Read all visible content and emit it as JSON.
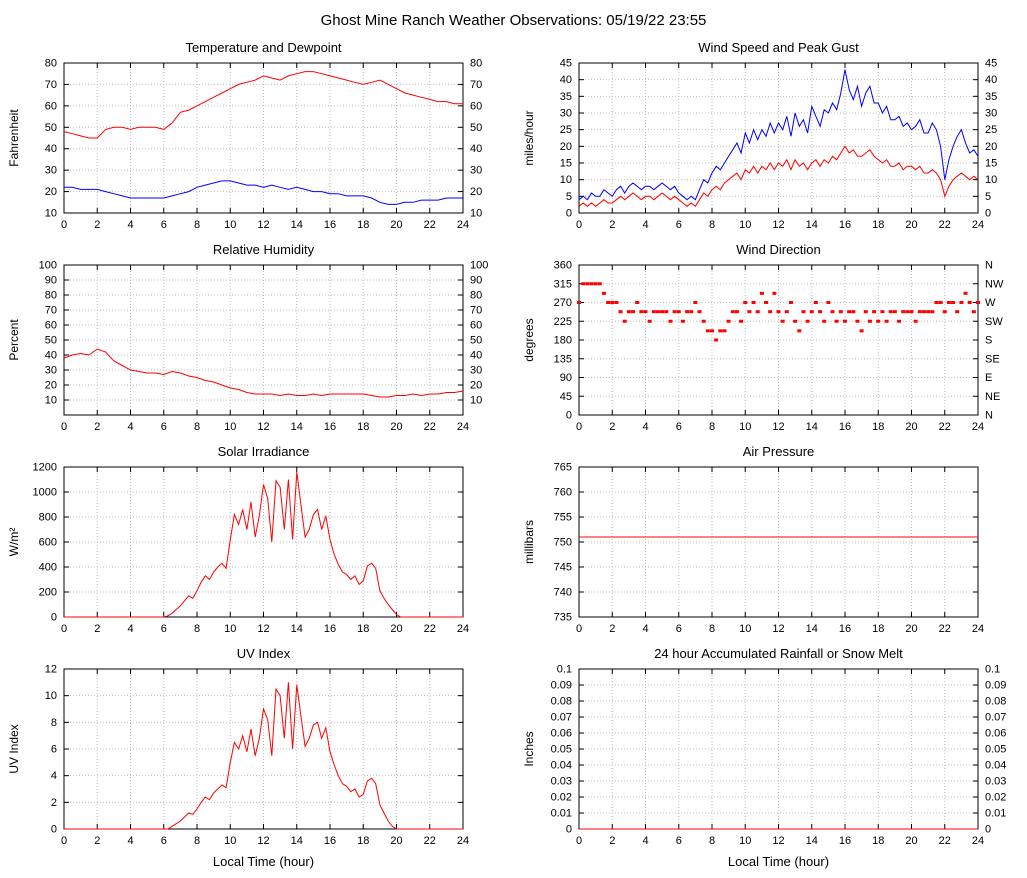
{
  "page_title": "Ghost Mine Ranch Weather Observations: 05/19/22 23:55",
  "colors": {
    "red": "#ff0000",
    "blue": "#0000ff"
  },
  "x_axis": {
    "label": "Local Time (hour)",
    "min": 0,
    "max": 24,
    "ticks": [
      0,
      2,
      4,
      6,
      8,
      10,
      12,
      14,
      16,
      18,
      20,
      22,
      24
    ]
  },
  "chart_data": [
    {
      "id": "temperature-dewpoint",
      "type": "line",
      "title": "Temperature and Dewpoint",
      "ylabel": "Fahrenheit",
      "xlabel": "",
      "ylim": [
        10,
        80
      ],
      "yticks": [
        10,
        20,
        30,
        40,
        50,
        60,
        70,
        80
      ],
      "ytick_labels": [
        "10",
        "20",
        "30",
        "40",
        "50",
        "60",
        "70",
        "80"
      ],
      "right_tick_labels": [
        "10",
        "20",
        "30",
        "40",
        "50",
        "60",
        "70",
        "80"
      ],
      "series": [
        {
          "name": "temperature",
          "color": "red",
          "x_start": 0,
          "x_step": 0.5,
          "values": [
            48,
            47,
            46,
            45,
            45,
            49,
            50,
            50,
            49,
            50,
            50,
            50,
            49,
            52,
            57,
            58,
            60,
            62,
            64,
            66,
            68,
            70,
            71,
            72,
            74,
            73,
            72,
            74,
            75,
            76,
            76,
            75,
            74,
            73,
            72,
            71,
            70,
            71,
            72,
            70,
            68,
            66,
            65,
            64,
            63,
            62,
            62,
            61,
            61
          ]
        },
        {
          "name": "dewpoint",
          "color": "blue",
          "x_start": 0,
          "x_step": 0.5,
          "values": [
            22,
            22,
            21,
            21,
            21,
            20,
            19,
            18,
            17,
            17,
            17,
            17,
            17,
            18,
            19,
            20,
            22,
            23,
            24,
            25,
            25,
            24,
            23,
            23,
            22,
            23,
            22,
            21,
            22,
            21,
            20,
            20,
            19,
            19,
            18,
            18,
            18,
            17,
            15,
            14,
            14,
            15,
            15,
            16,
            16,
            16,
            17,
            17,
            17
          ]
        }
      ]
    },
    {
      "id": "wind-speed-gust",
      "type": "line",
      "title": "Wind Speed and Peak Gust",
      "ylabel": "miles/hour",
      "xlabel": "",
      "ylim": [
        0,
        45
      ],
      "yticks": [
        0,
        5,
        10,
        15,
        20,
        25,
        30,
        35,
        40,
        45
      ],
      "ytick_labels": [
        "0",
        "5",
        "10",
        "15",
        "20",
        "25",
        "30",
        "35",
        "40",
        "45"
      ],
      "right_tick_labels": [
        "0",
        "5",
        "10",
        "15",
        "20",
        "25",
        "30",
        "35",
        "40",
        "45"
      ],
      "series": [
        {
          "name": "peak-gust",
          "color": "blue",
          "x_start": 0,
          "x_step": 0.25,
          "values": [
            4,
            5,
            4,
            6,
            5,
            5,
            7,
            6,
            5,
            7,
            8,
            6,
            8,
            9,
            8,
            7,
            8,
            8,
            7,
            8,
            9,
            8,
            7,
            8,
            6,
            5,
            4,
            5,
            4,
            7,
            10,
            9,
            12,
            14,
            13,
            15,
            17,
            19,
            21,
            18,
            24,
            21,
            25,
            22,
            25,
            23,
            27,
            24,
            27,
            25,
            29,
            23,
            30,
            26,
            28,
            24,
            32,
            29,
            26,
            31,
            30,
            33,
            31,
            36,
            43,
            37,
            34,
            38,
            32,
            36,
            38,
            33,
            33,
            30,
            32,
            28,
            28,
            29,
            26,
            27,
            25,
            26,
            28,
            24,
            24,
            27,
            25,
            20,
            10,
            16,
            20,
            23,
            25,
            21,
            18,
            19,
            17
          ]
        },
        {
          "name": "wind-speed",
          "color": "red",
          "x_start": 0,
          "x_step": 0.25,
          "values": [
            2,
            3,
            2,
            3,
            2,
            3,
            4,
            3,
            3,
            4,
            5,
            4,
            5,
            6,
            5,
            4,
            5,
            5,
            4,
            5,
            6,
            5,
            4,
            5,
            4,
            3,
            2,
            3,
            2,
            4,
            6,
            5,
            7,
            8,
            7,
            9,
            10,
            11,
            12,
            10,
            13,
            12,
            14,
            12,
            14,
            13,
            15,
            13,
            15,
            14,
            16,
            13,
            16,
            14,
            15,
            13,
            15,
            16,
            14,
            16,
            15,
            17,
            16,
            18,
            20,
            18,
            19,
            17,
            17,
            18,
            19,
            17,
            16,
            15,
            16,
            14,
            14,
            15,
            13,
            14,
            14,
            13,
            14,
            12,
            12,
            13,
            12,
            10,
            5,
            8,
            10,
            11,
            12,
            11,
            10,
            11,
            10
          ]
        }
      ]
    },
    {
      "id": "relative-humidity",
      "type": "line",
      "title": "Relative Humidity",
      "ylabel": "Percent",
      "xlabel": "",
      "ylim": [
        0,
        100
      ],
      "yticks": [
        10,
        20,
        30,
        40,
        50,
        60,
        70,
        80,
        90,
        100
      ],
      "ytick_labels": [
        "10",
        "20",
        "30",
        "40",
        "50",
        "60",
        "70",
        "80",
        "90",
        "100"
      ],
      "right_tick_labels": [
        "10",
        "20",
        "30",
        "40",
        "50",
        "60",
        "70",
        "80",
        "90",
        "100"
      ],
      "series": [
        {
          "name": "relative-humidity",
          "color": "red",
          "x_start": 0,
          "x_step": 0.5,
          "values": [
            38,
            40,
            41,
            40,
            44,
            42,
            36,
            33,
            30,
            29,
            28,
            28,
            27,
            29,
            28,
            26,
            25,
            23,
            22,
            20,
            18,
            17,
            15,
            14,
            14,
            14,
            13,
            14,
            13,
            13,
            14,
            13,
            14,
            14,
            14,
            14,
            14,
            13,
            12,
            12,
            13,
            13,
            14,
            13,
            14,
            14,
            15,
            15,
            16
          ]
        }
      ]
    },
    {
      "id": "wind-direction",
      "type": "scatter",
      "title": "Wind Direction",
      "ylabel": "degrees",
      "xlabel": "",
      "ylim": [
        0,
        360
      ],
      "yticks": [
        0,
        45,
        90,
        135,
        180,
        225,
        270,
        315,
        360
      ],
      "ytick_labels": [
        "0",
        "45",
        "90",
        "135",
        "180",
        "225",
        "270",
        "315",
        "360"
      ],
      "right_tick_labels": [
        "N",
        "NE",
        "E",
        "SE",
        "S",
        "SW",
        "W",
        "NW",
        "N"
      ],
      "series": [
        {
          "name": "wind-direction",
          "color": "red",
          "x_start": 0,
          "x_step": 0.25,
          "values": [
            270,
            315,
            315,
            315,
            315,
            315,
            292,
            270,
            270,
            270,
            248,
            225,
            248,
            248,
            270,
            248,
            248,
            225,
            248,
            248,
            248,
            248,
            225,
            248,
            248,
            225,
            248,
            248,
            270,
            248,
            225,
            202,
            202,
            180,
            202,
            202,
            225,
            248,
            248,
            225,
            270,
            248,
            270,
            248,
            292,
            270,
            248,
            292,
            248,
            225,
            248,
            270,
            225,
            202,
            248,
            225,
            248,
            270,
            248,
            225,
            270,
            248,
            225,
            248,
            225,
            248,
            248,
            225,
            202,
            248,
            225,
            248,
            225,
            248,
            225,
            248,
            248,
            225,
            248,
            248,
            248,
            225,
            248,
            248,
            248,
            248,
            270,
            270,
            248,
            270,
            270,
            248,
            270,
            292,
            270,
            248,
            270
          ]
        }
      ]
    },
    {
      "id": "solar-irradiance",
      "type": "line",
      "title": "Solar Irradiance",
      "ylabel": "W/m²",
      "xlabel": "",
      "ylim": [
        0,
        1200
      ],
      "yticks": [
        0,
        200,
        400,
        600,
        800,
        1000,
        1200
      ],
      "ytick_labels": [
        "0",
        "200",
        "400",
        "600",
        "800",
        "1000",
        "1200"
      ],
      "right_tick_labels": null,
      "series": [
        {
          "name": "solar-irradiance",
          "color": "red",
          "x_start": 0,
          "x_step": 0.25,
          "values": [
            0,
            0,
            0,
            0,
            0,
            0,
            0,
            0,
            0,
            0,
            0,
            0,
            0,
            0,
            0,
            0,
            0,
            0,
            0,
            0,
            0,
            0,
            0,
            0,
            0,
            10,
            30,
            60,
            90,
            130,
            170,
            150,
            210,
            280,
            330,
            300,
            360,
            400,
            430,
            390,
            620,
            820,
            740,
            860,
            700,
            920,
            640,
            810,
            1060,
            950,
            600,
            1090,
            1040,
            700,
            1100,
            620,
            1160,
            900,
            640,
            700,
            820,
            860,
            700,
            810,
            620,
            500,
            420,
            360,
            340,
            300,
            330,
            260,
            290,
            410,
            430,
            390,
            210,
            150,
            100,
            60,
            20,
            0,
            0,
            0,
            0,
            0,
            0,
            0,
            0,
            0,
            0,
            0,
            0,
            0,
            0,
            0,
            0
          ]
        }
      ]
    },
    {
      "id": "air-pressure",
      "type": "line",
      "title": "Air Pressure",
      "ylabel": "millibars",
      "xlabel": "",
      "ylim": [
        735,
        765
      ],
      "yticks": [
        735,
        740,
        745,
        750,
        755,
        760,
        765
      ],
      "ytick_labels": [
        "735",
        "740",
        "745",
        "750",
        "755",
        "760",
        "765"
      ],
      "right_tick_labels": null,
      "series": [
        {
          "name": "air-pressure",
          "color": "red",
          "constant": 751
        }
      ]
    },
    {
      "id": "uv-index",
      "type": "line",
      "title": "UV Index",
      "ylabel": "UV Index",
      "xlabel": "Local Time (hour)",
      "ylim": [
        0,
        12
      ],
      "yticks": [
        0,
        2,
        4,
        6,
        8,
        10,
        12
      ],
      "ytick_labels": [
        "0",
        "2",
        "4",
        "6",
        "8",
        "10",
        "12"
      ],
      "right_tick_labels": null,
      "series": [
        {
          "name": "uv-index",
          "color": "red",
          "x_start": 0,
          "x_step": 0.25,
          "values": [
            0,
            0,
            0,
            0,
            0,
            0,
            0,
            0,
            0,
            0,
            0,
            0,
            0,
            0,
            0,
            0,
            0,
            0,
            0,
            0,
            0,
            0,
            0,
            0,
            0,
            0,
            0.2,
            0.4,
            0.6,
            0.9,
            1.2,
            1.1,
            1.5,
            2,
            2.4,
            2.2,
            2.7,
            3,
            3.3,
            3.1,
            5,
            6.5,
            6,
            7,
            5.8,
            7.5,
            5.5,
            6.8,
            9,
            8.2,
            5.5,
            10.5,
            10,
            6.8,
            11,
            6,
            10.8,
            8.5,
            6.2,
            6.8,
            7.8,
            8,
            6.8,
            7.6,
            5.8,
            4.8,
            4,
            3.4,
            3.2,
            2.8,
            3,
            2.4,
            2.6,
            3.6,
            3.8,
            3.4,
            1.8,
            1.2,
            0.6,
            0.2,
            0,
            0,
            0,
            0,
            0,
            0,
            0,
            0,
            0,
            0,
            0,
            0,
            0,
            0,
            0,
            0,
            0
          ]
        }
      ]
    },
    {
      "id": "rainfall",
      "type": "line",
      "title": "24 hour Accumulated Rainfall or Snow Melt",
      "ylabel": "Inches",
      "xlabel": "Local Time (hour)",
      "ylim": [
        0,
        0.1
      ],
      "yticks": [
        0,
        0.01,
        0.02,
        0.03,
        0.04,
        0.05,
        0.06,
        0.07,
        0.08,
        0.09,
        0.1
      ],
      "ytick_labels": [
        "0",
        "0.01",
        "0.02",
        "0.03",
        "0.04",
        "0.05",
        "0.06",
        "0.07",
        "0.08",
        "0.09",
        "0.1"
      ],
      "right_tick_labels": [
        "0",
        "0.01",
        "0.02",
        "0.03",
        "0.04",
        "0.05",
        "0.06",
        "0.07",
        "0.08",
        "0.09",
        "0.1"
      ],
      "series": [
        {
          "name": "accumulated-rainfall",
          "color": "red",
          "constant": 0
        }
      ]
    }
  ]
}
